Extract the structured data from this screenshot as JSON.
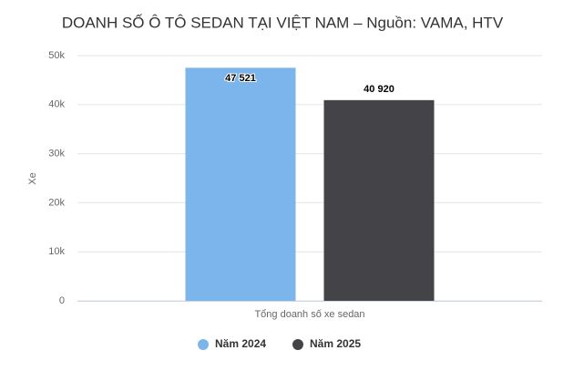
{
  "chart_data": {
    "type": "bar",
    "title": "DOANH SỐ Ô TÔ SEDAN TẠI VIỆT NAM – Nguồn: VAMA, HTV",
    "y_label": "Xe",
    "categories": [
      "Tổng doanh số xe sedan"
    ],
    "series": [
      {
        "name": "Năm 2024",
        "color": "#7cb5ec",
        "values": [
          47521
        ],
        "value_labels": [
          "47 521"
        ]
      },
      {
        "name": "Năm 2025",
        "color": "#434348",
        "values": [
          40920
        ],
        "value_labels": [
          "40 920"
        ]
      }
    ],
    "ylim": [
      0,
      50000
    ],
    "yticks": [
      0,
      {
        "value": 10000,
        "label": "10k"
      },
      {
        "value": 20000,
        "label": "20k"
      },
      {
        "value": 30000,
        "label": "30k"
      },
      {
        "value": 40000,
        "label": "40k"
      },
      {
        "value": 50000,
        "label": "50k"
      }
    ],
    "grid": true
  }
}
